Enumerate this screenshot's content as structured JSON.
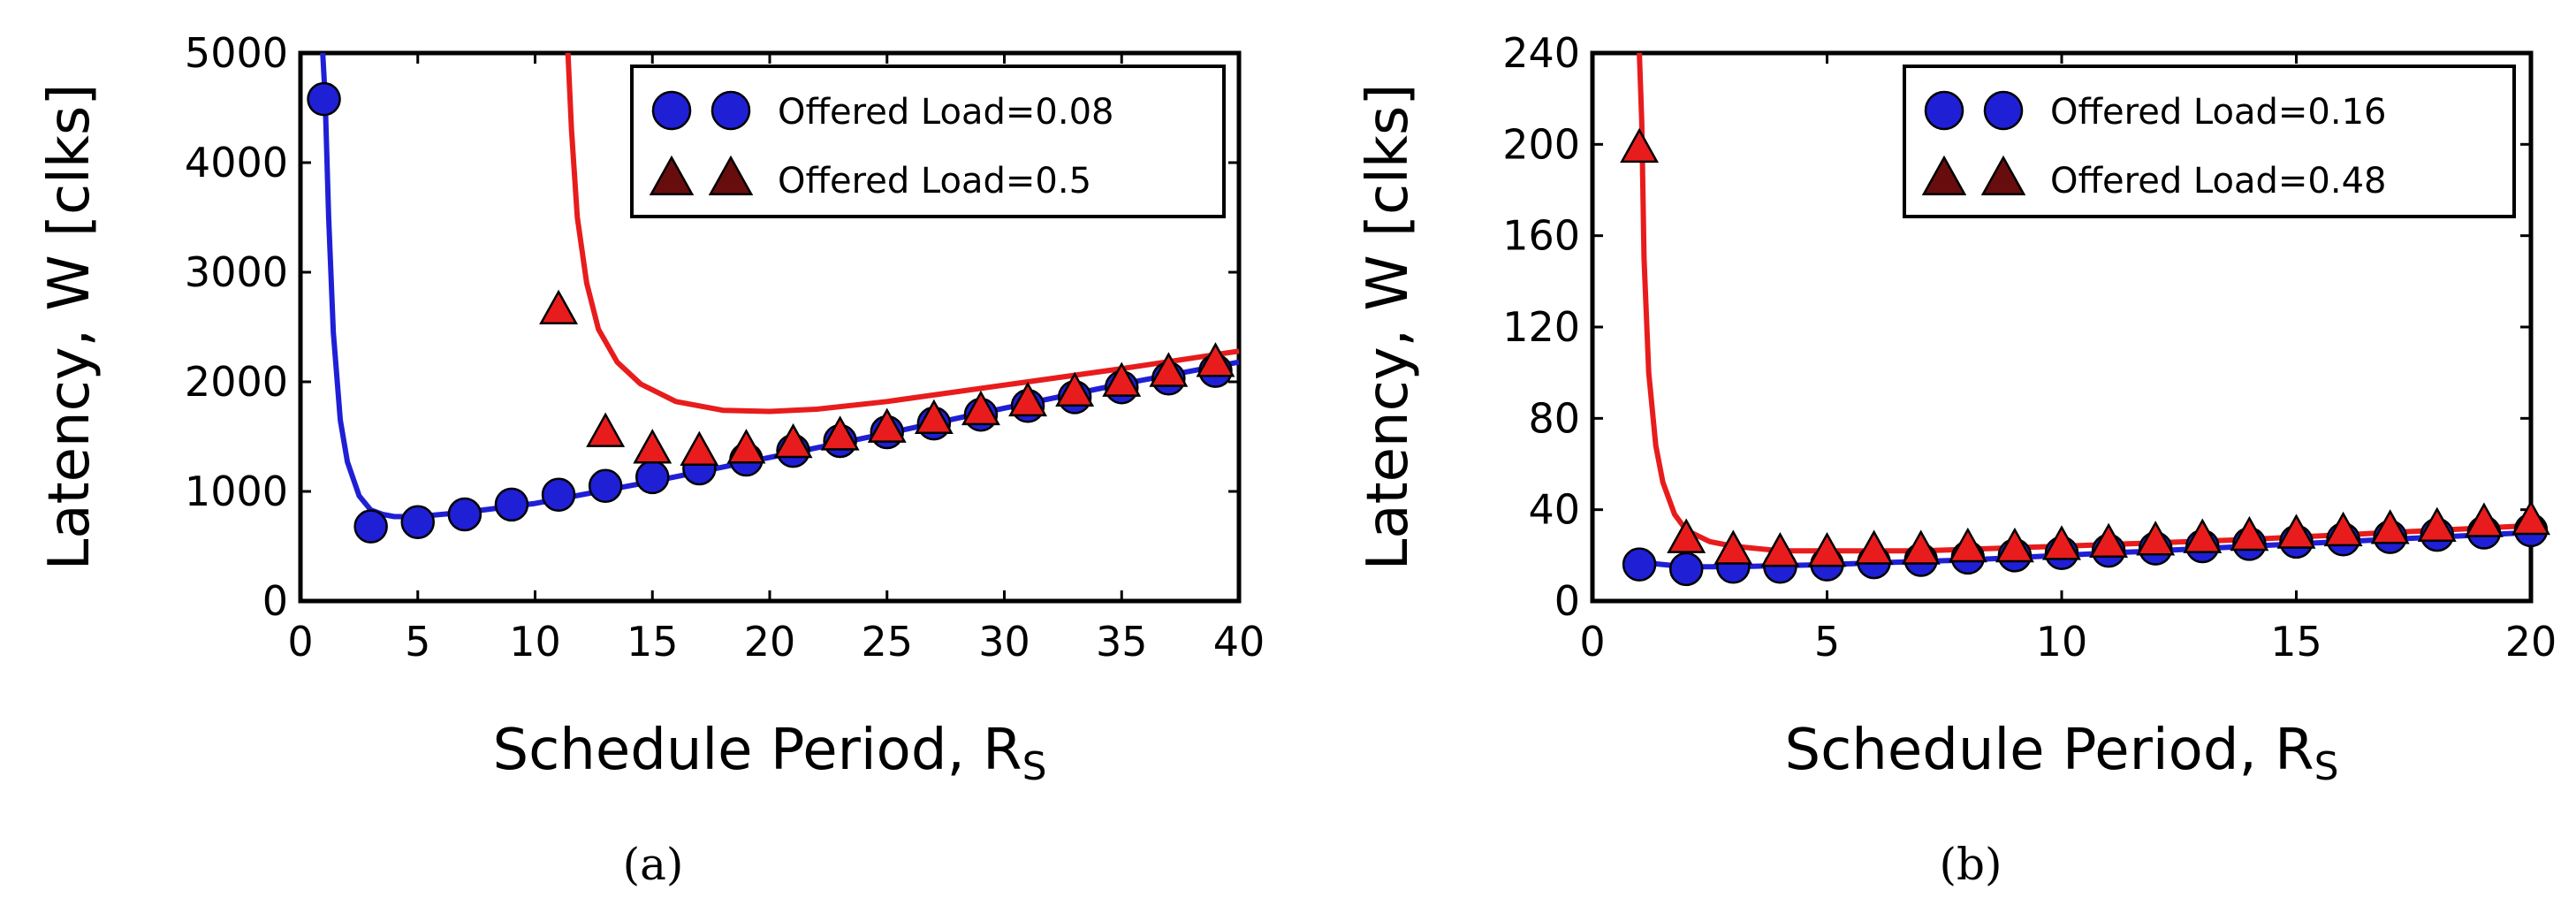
{
  "chart_data": [
    {
      "type": "scatter",
      "panel": "(a)",
      "xlabel": "Schedule Period, R",
      "xlabel_sub": "S",
      "ylabel": "Latency, W [clks]",
      "xlim": [
        0,
        40
      ],
      "ylim": [
        0,
        5000
      ],
      "xticks": [
        0,
        5,
        10,
        15,
        20,
        25,
        30,
        35,
        40
      ],
      "yticks": [
        0,
        1000,
        2000,
        3000,
        4000,
        5000
      ],
      "grid": false,
      "legend_position": "top-right",
      "series": [
        {
          "name": "Offered Load=0.08",
          "marker": "circle",
          "marker_color": "#1f1fd6",
          "line_color": "#1f1fd6",
          "x": [
            1,
            3,
            5,
            7,
            9,
            11,
            13,
            15,
            17,
            19,
            21,
            23,
            25,
            27,
            29,
            31,
            33,
            35,
            37,
            39
          ],
          "y": [
            4580,
            680,
            720,
            790,
            880,
            970,
            1050,
            1130,
            1210,
            1290,
            1370,
            1460,
            1540,
            1620,
            1700,
            1780,
            1860,
            1950,
            2030,
            2100
          ],
          "model": {
            "x": [
              0.95,
              1.05,
              1.2,
              1.4,
              1.7,
              2.0,
              2.5,
              3,
              3.5,
              4,
              5,
              7,
              10,
              15,
              20,
              25,
              30,
              35,
              40
            ],
            "y": [
              5000,
              4600,
              3500,
              2450,
              1650,
              1270,
              960,
              830,
              790,
              770,
              770,
              810,
              890,
              1090,
              1310,
              1530,
              1760,
              1980,
              2180
            ]
          }
        },
        {
          "name": "Offered Load=0.5",
          "marker": "triangle",
          "marker_color": "#e81c1c",
          "line_color": "#e81c1c",
          "x": [
            11,
            13,
            15,
            17,
            19,
            21,
            23,
            25,
            27,
            29,
            31,
            33,
            35,
            37,
            39
          ],
          "y": [
            2650,
            1530,
            1380,
            1360,
            1380,
            1430,
            1500,
            1570,
            1650,
            1730,
            1810,
            1900,
            1990,
            2080,
            2170
          ],
          "model": {
            "x": [
              11.4,
              11.55,
              11.8,
              12.2,
              12.7,
              13.5,
              14.5,
              16,
              18,
              20,
              22,
              25,
              30,
              35,
              40
            ],
            "y": [
              5000,
              4300,
              3500,
              2900,
              2480,
              2180,
              1980,
              1820,
              1740,
              1730,
              1750,
              1820,
              1970,
              2120,
              2280
            ]
          }
        }
      ]
    },
    {
      "type": "scatter",
      "panel": "(b)",
      "xlabel": "Schedule Period, R",
      "xlabel_sub": "S",
      "ylabel": "Latency, W [clks]",
      "xlim": [
        0,
        20
      ],
      "ylim": [
        0,
        240
      ],
      "xticks": [
        0,
        5,
        10,
        15,
        20
      ],
      "yticks": [
        0,
        40,
        80,
        120,
        160,
        200,
        240
      ],
      "grid": false,
      "legend_position": "top-right",
      "series": [
        {
          "name": "Offered Load=0.16",
          "marker": "circle",
          "marker_color": "#1f1fd6",
          "line_color": "#1f1fd6",
          "x": [
            1,
            2,
            3,
            4,
            5,
            6,
            7,
            8,
            9,
            10,
            11,
            12,
            13,
            14,
            15,
            16,
            17,
            18,
            19,
            20
          ],
          "y": [
            16,
            14,
            15,
            15,
            16,
            17,
            18,
            19,
            20,
            21,
            22,
            23,
            24,
            25,
            26,
            27,
            28,
            29,
            30,
            31
          ],
          "model": {
            "x": [
              1,
              2,
              3,
              5,
              8,
              12,
              16,
              20
            ],
            "y": [
              17,
              15,
              15,
              16,
              18,
              22,
              26,
              30
            ]
          }
        },
        {
          "name": "Offered Load=0.48",
          "marker": "triangle",
          "marker_color": "#e81c1c",
          "line_color": "#e81c1c",
          "x": [
            1,
            2,
            3,
            4,
            5,
            6,
            7,
            8,
            9,
            10,
            11,
            12,
            13,
            14,
            15,
            16,
            17,
            18,
            19,
            20
          ],
          "y": [
            198,
            27,
            22,
            21,
            21,
            22,
            22,
            23,
            23,
            24,
            25,
            26,
            27,
            28,
            29,
            30,
            31,
            32,
            34,
            35
          ],
          "model": {
            "x": [
              1.0,
              1.05,
              1.1,
              1.2,
              1.35,
              1.5,
              1.75,
              2.0,
              2.5,
              3,
              4,
              5,
              7,
              10,
              14,
              17,
              20
            ],
            "y": [
              240,
              210,
              150,
              100,
              68,
              52,
              38,
              31,
              26,
              24,
              22,
              22,
              22,
              24,
              27,
              30,
              33
            ]
          }
        }
      ]
    }
  ]
}
